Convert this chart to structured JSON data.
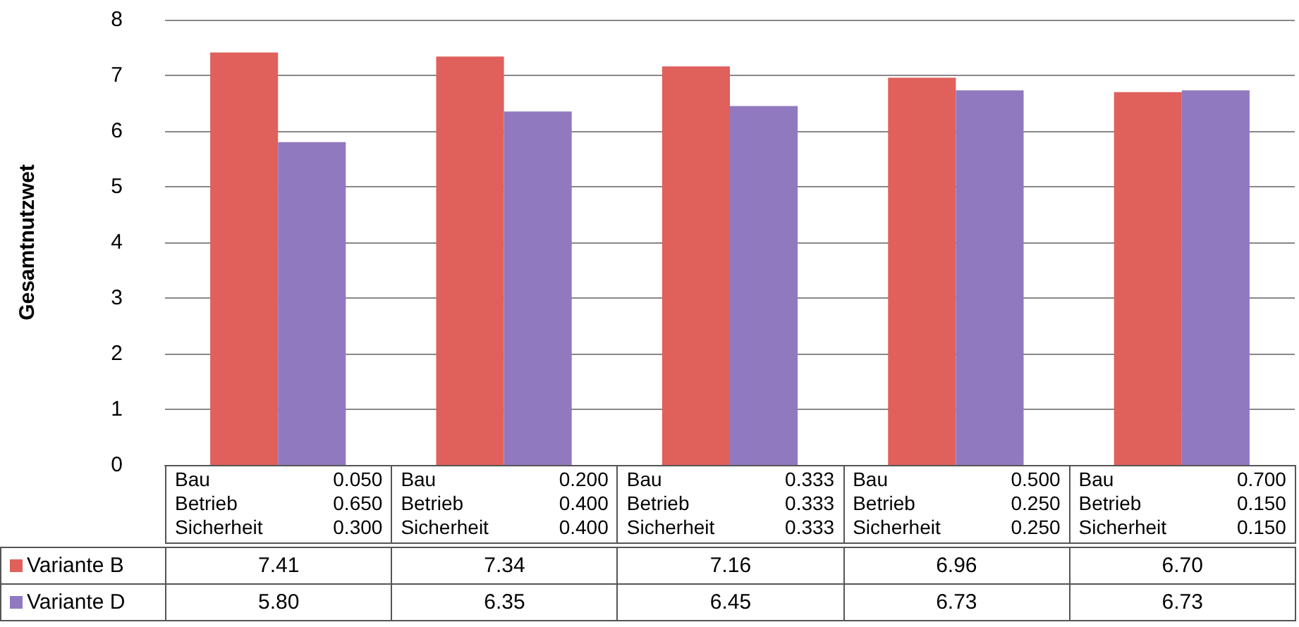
{
  "chart_data": {
    "type": "bar",
    "ylabel": "Gesamtnutzwet",
    "categories": [
      "Bau 0.050\nBetrieb 0.650\nSicherheit 0.300",
      "Bau 0.200\nBetrieb 0.400\nSicherheit 0.400",
      "Bau 0.333\nBetrieb 0.333\nSicherheit 0.333",
      "Bau 0.500\nBetrieb 0.250\nSicherheit 0.250",
      "Bau 0.700\nBetrieb 0.150\nSicherheit 0.150"
    ],
    "series": [
      {
        "name": "Variante B",
        "color": "#e0605c",
        "values": [
          7.41,
          7.34,
          7.16,
          6.96,
          6.7
        ],
        "value_labels": [
          "7.41",
          "7.34",
          "7.16",
          "6.96",
          "6.70"
        ]
      },
      {
        "name": "Variante D",
        "color": "#9179c0",
        "values": [
          5.8,
          6.35,
          6.45,
          6.73,
          6.73
        ],
        "value_labels": [
          "5.80",
          "6.35",
          "6.45",
          "6.73",
          "6.73"
        ]
      }
    ],
    "ylim": [
      0,
      8
    ],
    "yticks": [
      0,
      1,
      2,
      3,
      4,
      5,
      6,
      7,
      8
    ],
    "grid": "y",
    "legend": "bottom left"
  }
}
